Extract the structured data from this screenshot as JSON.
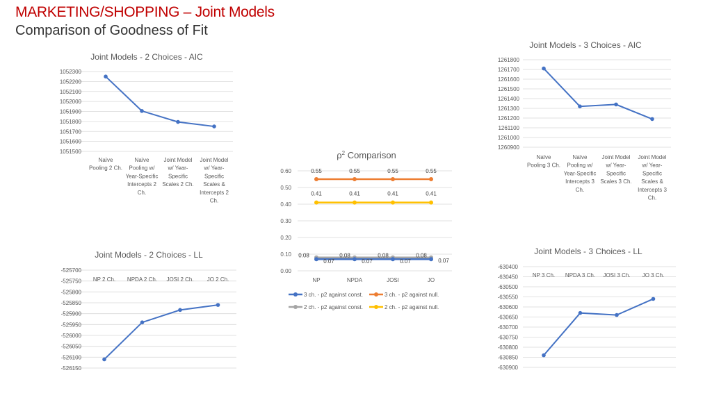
{
  "header": {
    "title": "MARKETING/SHOPPING – Joint Models",
    "subtitle": "Comparison of Goodness of Fit"
  },
  "colors": {
    "blue": "#4472c4",
    "orange": "#ed7d31",
    "gray": "#a5a5a5",
    "yellow": "#ffc000",
    "title_red": "#c00000"
  },
  "chart_data": [
    {
      "id": "aic2",
      "type": "line",
      "title": "Joint Models - 2 Choices - AIC",
      "categories": [
        "Naïve Pooling 2 Ch.",
        "Naïve Pooling w/ Year-Specific Intercepts 2 Ch.",
        "Joint Model w/ Year-Specific Scales 2 Ch.",
        "Joint Model w/ Year-Specific Scales & Intercepts 2 Ch."
      ],
      "category_lines": [
        [
          "Naïve",
          "Pooling 2 Ch."
        ],
        [
          "Naïve",
          "Pooling w/",
          "Year-Specific",
          "Intercepts 2",
          "Ch."
        ],
        [
          "Joint Model",
          "w/ Year-",
          "Specific",
          "Scales 2 Ch."
        ],
        [
          "Joint Model",
          "w/ Year-",
          "Specific",
          "Scales &",
          "Intercepts 2",
          "Ch."
        ]
      ],
      "series": [
        {
          "values": [
            1052250,
            1051905,
            1051795,
            1051750
          ]
        }
      ],
      "ylim": [
        1051500,
        1052300
      ],
      "yticks": [
        1052300,
        1052200,
        1052100,
        1052000,
        1051900,
        1051800,
        1051700,
        1051600,
        1051500
      ],
      "grid": true
    },
    {
      "id": "aic3",
      "type": "line",
      "title": "Joint Models - 3 Choices - AIC",
      "categories": [
        "Naïve Pooling 3 Ch.",
        "Naïve Pooling w/ Year-Specific Intercepts 3 Ch.",
        "Joint Model w/ Year-Specific Scales 3 Ch.",
        "Joint Model w/ Year-Specific Scales & Intercepts 3 Ch."
      ],
      "category_lines": [
        [
          "Naïve",
          "Pooling 3 Ch."
        ],
        [
          "Naïve",
          "Pooling w/",
          "Year-Specific",
          "Intercepts 3",
          "Ch."
        ],
        [
          "Joint Model",
          "w/ Year-",
          "Specific",
          "Scales 3 Ch."
        ],
        [
          "Joint Model",
          "w/ Year-",
          "Specific",
          "Scales &",
          "Intercepts 3",
          "Ch."
        ]
      ],
      "series": [
        {
          "values": [
            1261710,
            1261320,
            1261340,
            1261190
          ]
        }
      ],
      "ylim": [
        1260900,
        1261800
      ],
      "yticks": [
        1261800,
        1261700,
        1261600,
        1261500,
        1261400,
        1261300,
        1261200,
        1261100,
        1261000,
        1260900
      ],
      "grid": true
    },
    {
      "id": "rho",
      "type": "line",
      "title": "ρ² Comparison",
      "title_main": "ρ",
      "title_sup": "2",
      "title_rest": " Comparison",
      "categories": [
        "NP",
        "NPDA",
        "JOSI",
        "JO"
      ],
      "ylim": [
        0,
        0.6
      ],
      "yticks": [
        "0.60",
        "0.50",
        "0.40",
        "0.30",
        "0.20",
        "0.10",
        "0.00"
      ],
      "grid": true,
      "legend_position": "bottom",
      "series": [
        {
          "name": "3 ch. - p2 against const.",
          "color": "#4472c4",
          "values": [
            0.07,
            0.07,
            0.07,
            0.07
          ],
          "labels": [
            "0.07",
            "0.07",
            "0.07",
            "0.07"
          ],
          "label_pos": "below"
        },
        {
          "name": "3 ch. - p2 against null.",
          "color": "#ed7d31",
          "values": [
            0.55,
            0.55,
            0.55,
            0.55
          ],
          "labels": [
            "0.55",
            "0.55",
            "0.55",
            "0.55"
          ],
          "label_pos": "above"
        },
        {
          "name": "2 ch. - p2 against const.",
          "color": "#a5a5a5",
          "values": [
            0.08,
            0.08,
            0.08,
            0.08
          ],
          "labels": [
            "0.08",
            "0.08",
            "0.08",
            "0.08"
          ],
          "label_pos": "above-left"
        },
        {
          "name": "2 ch. - p2 against null.",
          "color": "#ffc000",
          "values": [
            0.41,
            0.41,
            0.41,
            0.41
          ],
          "labels": [
            "0.41",
            "0.41",
            "0.41",
            "0.41"
          ],
          "label_pos": "above"
        }
      ]
    },
    {
      "id": "ll2",
      "type": "line",
      "title": "Joint Models - 2 Choices - LL",
      "categories": [
        "NP 2 Ch.",
        "NPDA 2 Ch.",
        "JOSI 2 Ch.",
        "JO 2 Ch."
      ],
      "series": [
        {
          "values": [
            -526110,
            -525940,
            -525883,
            -525860
          ]
        }
      ],
      "ylim": [
        -526150,
        -525700
      ],
      "yticks": [
        -525700,
        -525750,
        -525800,
        -525850,
        -525900,
        -525950,
        -526000,
        -526050,
        -526100,
        -526150
      ],
      "grid": true
    },
    {
      "id": "ll3",
      "type": "line",
      "title": "Joint Models - 3 Choices - LL",
      "categories": [
        "NP 3 Ch.",
        "NPDA 3 Ch.",
        "JOSI 3 Ch.",
        "JO 3 Ch."
      ],
      "series": [
        {
          "values": [
            -630840,
            -630630,
            -630640,
            -630560
          ]
        }
      ],
      "ylim": [
        -630900,
        -630400
      ],
      "yticks": [
        -630400,
        -630450,
        -630500,
        -630550,
        -630600,
        -630650,
        -630700,
        -630750,
        -630800,
        -630850,
        -630900
      ],
      "grid": true
    }
  ]
}
